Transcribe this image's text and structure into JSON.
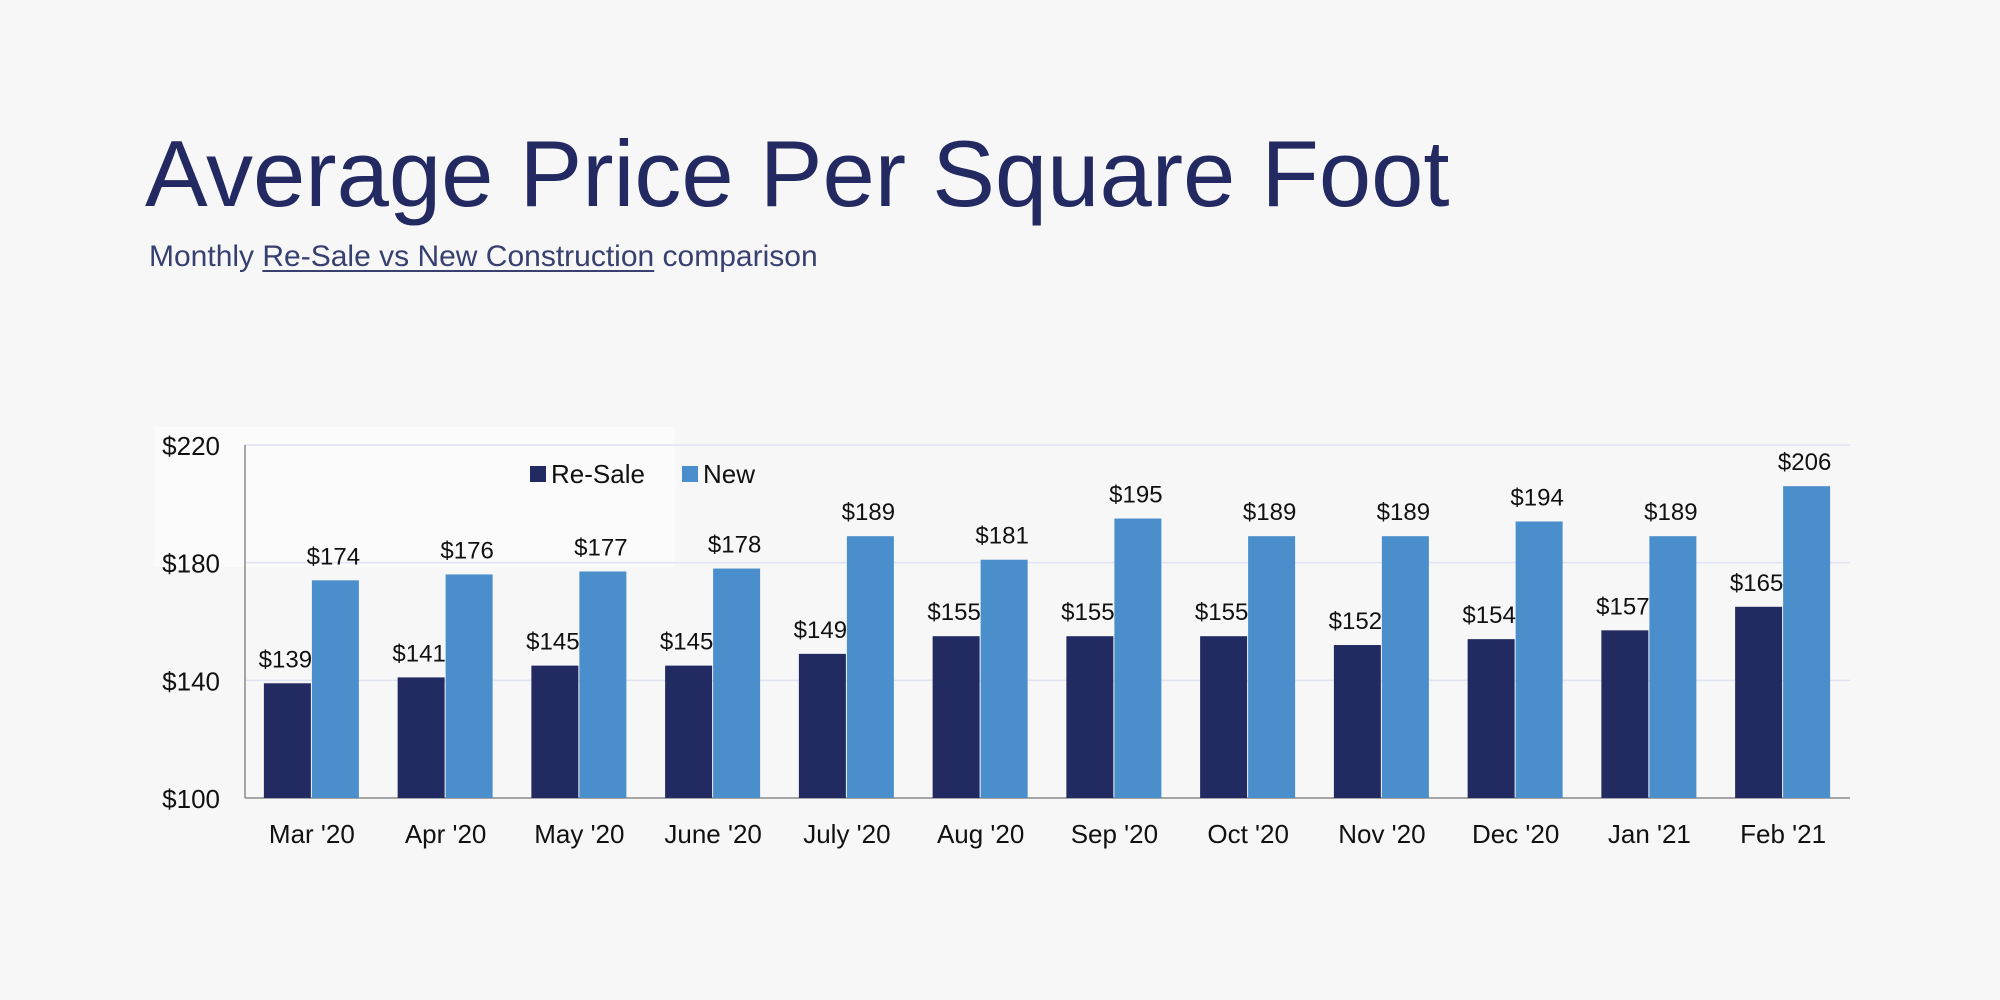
{
  "page": {
    "title": "Average Price Per Square Foot",
    "subtitle_prefix": "Monthly ",
    "subtitle_underlined": "Re-Sale vs New Construction",
    "subtitle_suffix": " comparison"
  },
  "colors": {
    "title": "#232a62",
    "resale": "#222a62",
    "new": "#4a8ecb",
    "grid": "#dfe3f2",
    "axis": "#8a8a8a",
    "text": "#111111"
  },
  "chart_data": {
    "type": "bar",
    "categories": [
      "Mar '20",
      "Apr '20",
      "May '20",
      "June '20",
      "July '20",
      "Aug '20",
      "Sep '20",
      "Oct '20",
      "Nov '20",
      "Dec '20",
      "Jan '21",
      "Feb '21"
    ],
    "series": [
      {
        "name": "Re-Sale",
        "values": [
          139,
          141,
          145,
          145,
          149,
          155,
          155,
          155,
          152,
          154,
          157,
          165
        ],
        "labels": [
          "$139",
          "$141",
          "$145",
          "$145",
          "$149",
          "$155",
          "$155",
          "$155",
          "$152",
          "$154",
          "$157",
          "$165"
        ]
      },
      {
        "name": "New",
        "values": [
          174,
          176,
          177,
          178,
          189,
          181,
          195,
          189,
          189,
          194,
          189,
          206
        ],
        "labels": [
          "$174",
          "$176",
          "$177",
          "$178",
          "$189",
          "$181",
          "$195",
          "$189",
          "$189",
          "$194",
          "$189",
          "$206"
        ]
      }
    ],
    "ylim": [
      100,
      220
    ],
    "yticks": [
      100,
      140,
      180,
      220
    ],
    "ytick_labels": [
      "$100",
      "$140",
      "$180",
      "$220"
    ],
    "grid": true,
    "legend": "top-left"
  }
}
